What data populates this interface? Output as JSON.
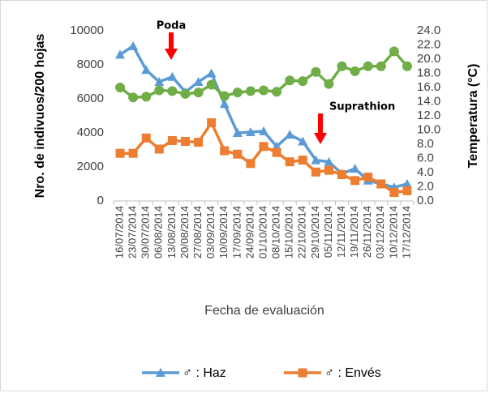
{
  "chart_data": {
    "type": "line",
    "y_label": "Nro. de indivuos/200 hojas",
    "y2_label": "Temperatura (°C)",
    "x_label": "Fecha de evaluación",
    "annotations": [
      "Poda",
      "Suprathion"
    ],
    "categories": [
      "16/07/2014",
      "23/07/2014",
      "30/07/2014",
      "06/08/2014",
      "13/08/2014",
      "20/08/2014",
      "27/08/2014",
      "03/09/2014",
      "10/09/2014",
      "17/09/2014",
      "24/09/2014",
      "01/10/2014",
      "08/10/2014",
      "15/10/2014",
      "22/10/2014",
      "29/10/2014",
      "05/11/2014",
      "12/11/2014",
      "19/11/2014",
      "26/11/2014",
      "03/12/2014",
      "10/12/2014",
      "17/12/2014"
    ],
    "series": [
      {
        "name": "♂ : Haz",
        "color": "#5b9bd5",
        "marker": "triangle",
        "values": [
          8600,
          9100,
          7700,
          7000,
          7300,
          6400,
          7000,
          7500,
          5700,
          4000,
          4050,
          4100,
          3200,
          3900,
          3500,
          2400,
          2300,
          1600,
          1900,
          1200,
          1000,
          800,
          1000
        ]
      },
      {
        "name": "♂ : Envés",
        "color": "#ed7d31",
        "marker": "square",
        "values": [
          2800,
          2800,
          3700,
          3050,
          3550,
          3500,
          3450,
          4600,
          2950,
          2750,
          2200,
          3200,
          2850,
          2300,
          2400,
          1700,
          1800,
          1550,
          1200,
          1400,
          1000,
          500,
          600
        ]
      },
      {
        "color": "#70ad47",
        "marker": "circle",
        "axis": "y2",
        "values": [
          16.0,
          14.6,
          14.7,
          15.6,
          15.5,
          15.1,
          15.3,
          16.4,
          14.8,
          15.3,
          15.5,
          15.6,
          15.4,
          17.0,
          16.9,
          18.2,
          16.5,
          19.0,
          18.3,
          19.0,
          19.0,
          21.1,
          19.0
        ]
      }
    ],
    "ylim": [
      0,
      10000
    ],
    "yticks": [
      0,
      2000,
      4000,
      6000,
      8000,
      10000
    ],
    "y2lim": [
      0,
      24
    ],
    "y2ticks": [
      {
        "value": 0,
        "label": "0.0"
      },
      {
        "value": 2,
        "label": "2.0"
      },
      {
        "value": 4,
        "label": "4.0"
      },
      {
        "value": 6,
        "label": "6.0"
      },
      {
        "value": 8,
        "label": "8.0"
      },
      {
        "value": 10,
        "label": "10.0"
      },
      {
        "value": 12,
        "label": "12.0"
      },
      {
        "value": 14,
        "label": "14.0"
      },
      {
        "value": 16,
        "label": "16.0"
      },
      {
        "value": 18,
        "label": "18.0"
      },
      {
        "value": 20,
        "label": "20.0"
      },
      {
        "value": 22,
        "label": "22.0"
      },
      {
        "value": 24,
        "label": "24.0"
      }
    ],
    "grid": false
  }
}
